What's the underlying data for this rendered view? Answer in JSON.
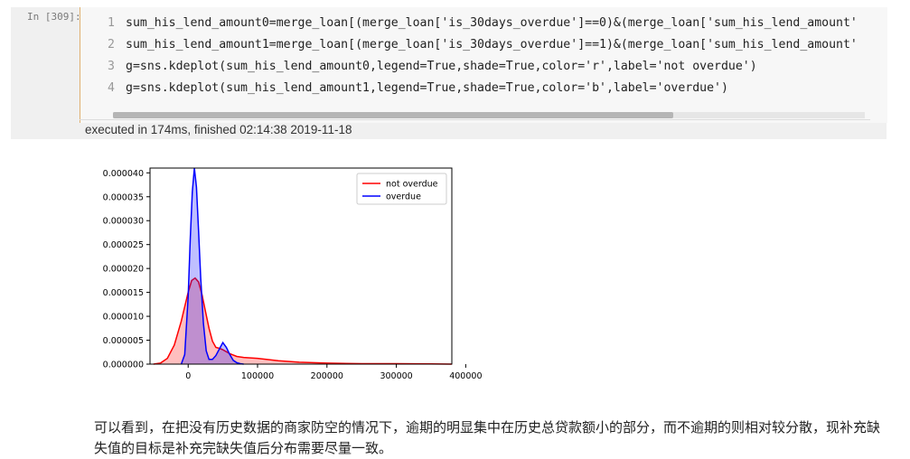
{
  "cell": {
    "prompt": "In [309]:",
    "code_lines": [
      {
        "num": "1",
        "text": "sum_his_lend_amount0=merge_loan[(merge_loan['is_30days_overdue']==0)&(merge_loan['sum_his_lend_amount'"
      },
      {
        "num": "2",
        "text": "sum_his_lend_amount1=merge_loan[(merge_loan['is_30days_overdue']==1)&(merge_loan['sum_his_lend_amount'"
      },
      {
        "num": "3",
        "text": "g=sns.kdeplot(sum_his_lend_amount0,legend=True,shade=True,color='r',label='not overdue')"
      },
      {
        "num": "4",
        "text": "g=sns.kdeplot(sum_his_lend_amount1,legend=True,shade=True,color='b',label='overdue')"
      }
    ],
    "execution_status": "executed in 174ms, finished 02:14:38 2019-11-18"
  },
  "chart_data": {
    "type": "area",
    "xlim": [
      -55000,
      380000
    ],
    "ylim": [
      0,
      4.1e-05
    ],
    "x_ticks": [
      "0",
      "100000",
      "200000",
      "300000",
      "400000"
    ],
    "y_ticks": [
      "0.000000",
      "0.000005",
      "0.000010",
      "0.000015",
      "0.000020",
      "0.000025",
      "0.000030",
      "0.000035",
      "0.000040"
    ],
    "legend_position": "top-right",
    "grid": false,
    "colors": {
      "not_overdue": "#ff0000",
      "overdue": "#0000ff"
    },
    "series": [
      {
        "name": "not overdue",
        "x": [
          -50000,
          -40000,
          -30000,
          -20000,
          -10000,
          0,
          5000,
          10000,
          15000,
          20000,
          25000,
          30000,
          35000,
          40000,
          45000,
          50000,
          60000,
          70000,
          80000,
          100000,
          130000,
          160000,
          200000,
          250000,
          300000,
          350000,
          380000
        ],
        "y": [
          0,
          2e-07,
          1.2e-06,
          4e-06,
          9e-06,
          1.5e-05,
          1.75e-05,
          1.8e-05,
          1.72e-05,
          1.45e-05,
          1.1e-05,
          7.5e-06,
          4.8e-06,
          3.5e-06,
          3.3e-06,
          3e-06,
          2.2e-06,
          1.6e-06,
          1.4e-06,
          1.2e-06,
          7e-07,
          4e-07,
          2e-07,
          1e-07,
          1e-07,
          5e-08,
          0
        ]
      },
      {
        "name": "overdue",
        "x": [
          -10000,
          -5000,
          0,
          3000,
          6000,
          9000,
          12000,
          15000,
          18000,
          22000,
          26000,
          30000,
          35000,
          40000,
          45000,
          50000,
          55000,
          60000,
          65000,
          70000,
          75000,
          80000
        ],
        "y": [
          0,
          2e-06,
          1.4e-05,
          2.6e-05,
          3.6e-05,
          4.1e-05,
          3.7e-05,
          2.8e-05,
          1.8e-05,
          8.5e-06,
          2.8e-06,
          1e-06,
          1e-06,
          1.8e-06,
          3.2e-06,
          4.5e-06,
          3.5e-06,
          2e-06,
          8e-07,
          3e-07,
          1e-07,
          0
        ]
      }
    ]
  },
  "note_text": "可以看到，在把没有历史数据的商家防空的情况下，逾期的明显集中在历史总贷款额小的部分，而不逾期的则相对较分散，现补充缺失值的目标是补充完缺失值后分布需要尽量一致。"
}
